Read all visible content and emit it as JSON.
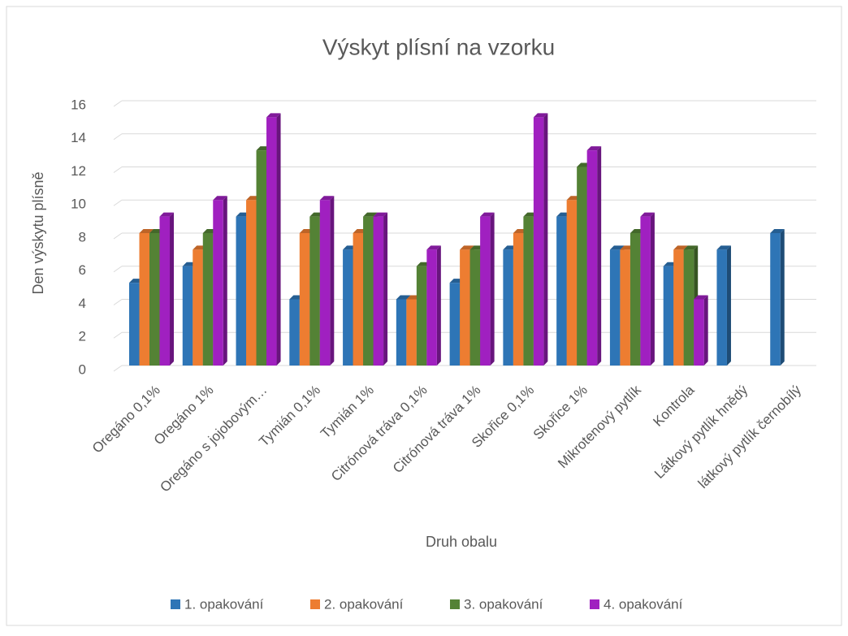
{
  "chart_data": {
    "type": "bar",
    "title": "Výskyt plísní na vzorku",
    "x_label": "Druh obalu",
    "y_label": "Den výskytu plísně",
    "categories": [
      "Oregáno 0,1%",
      "Oregáno 1%",
      "Oregáno s jojobovým…",
      "Tymián 0,1%",
      "Tymián 1%",
      "Citrónová tráva 0,1%",
      "Citrónová tráva 1%",
      "Skořice 0,1%",
      "Skořice 1%",
      "Mikrotenový pytlík",
      "Kontrola",
      "Látkový pytlík hnědý",
      "látkový pytlík černobílý"
    ],
    "series": [
      {
        "name": "1. opakování",
        "color": "#2e75b6",
        "values": [
          5,
          6,
          9,
          4,
          7,
          4,
          5,
          7,
          9,
          7,
          6,
          7,
          8
        ]
      },
      {
        "name": "2. opakování",
        "color": "#ed7d31",
        "values": [
          8,
          7,
          10,
          8,
          8,
          4,
          7,
          8,
          10,
          7,
          7,
          null,
          null
        ]
      },
      {
        "name": "3. opakování",
        "color": "#548235",
        "values": [
          8,
          8,
          13,
          9,
          9,
          6,
          7,
          9,
          12,
          8,
          7,
          null,
          null
        ]
      },
      {
        "name": "4. opakování",
        "color": "#a020c0",
        "values": [
          9,
          10,
          15,
          10,
          9,
          7,
          9,
          15,
          13,
          9,
          4,
          null,
          null
        ]
      }
    ],
    "ylim": [
      0,
      16
    ],
    "yticks": [
      0,
      2,
      4,
      6,
      8,
      10,
      12,
      14,
      16
    ],
    "grid": true,
    "legend": "bottom"
  }
}
